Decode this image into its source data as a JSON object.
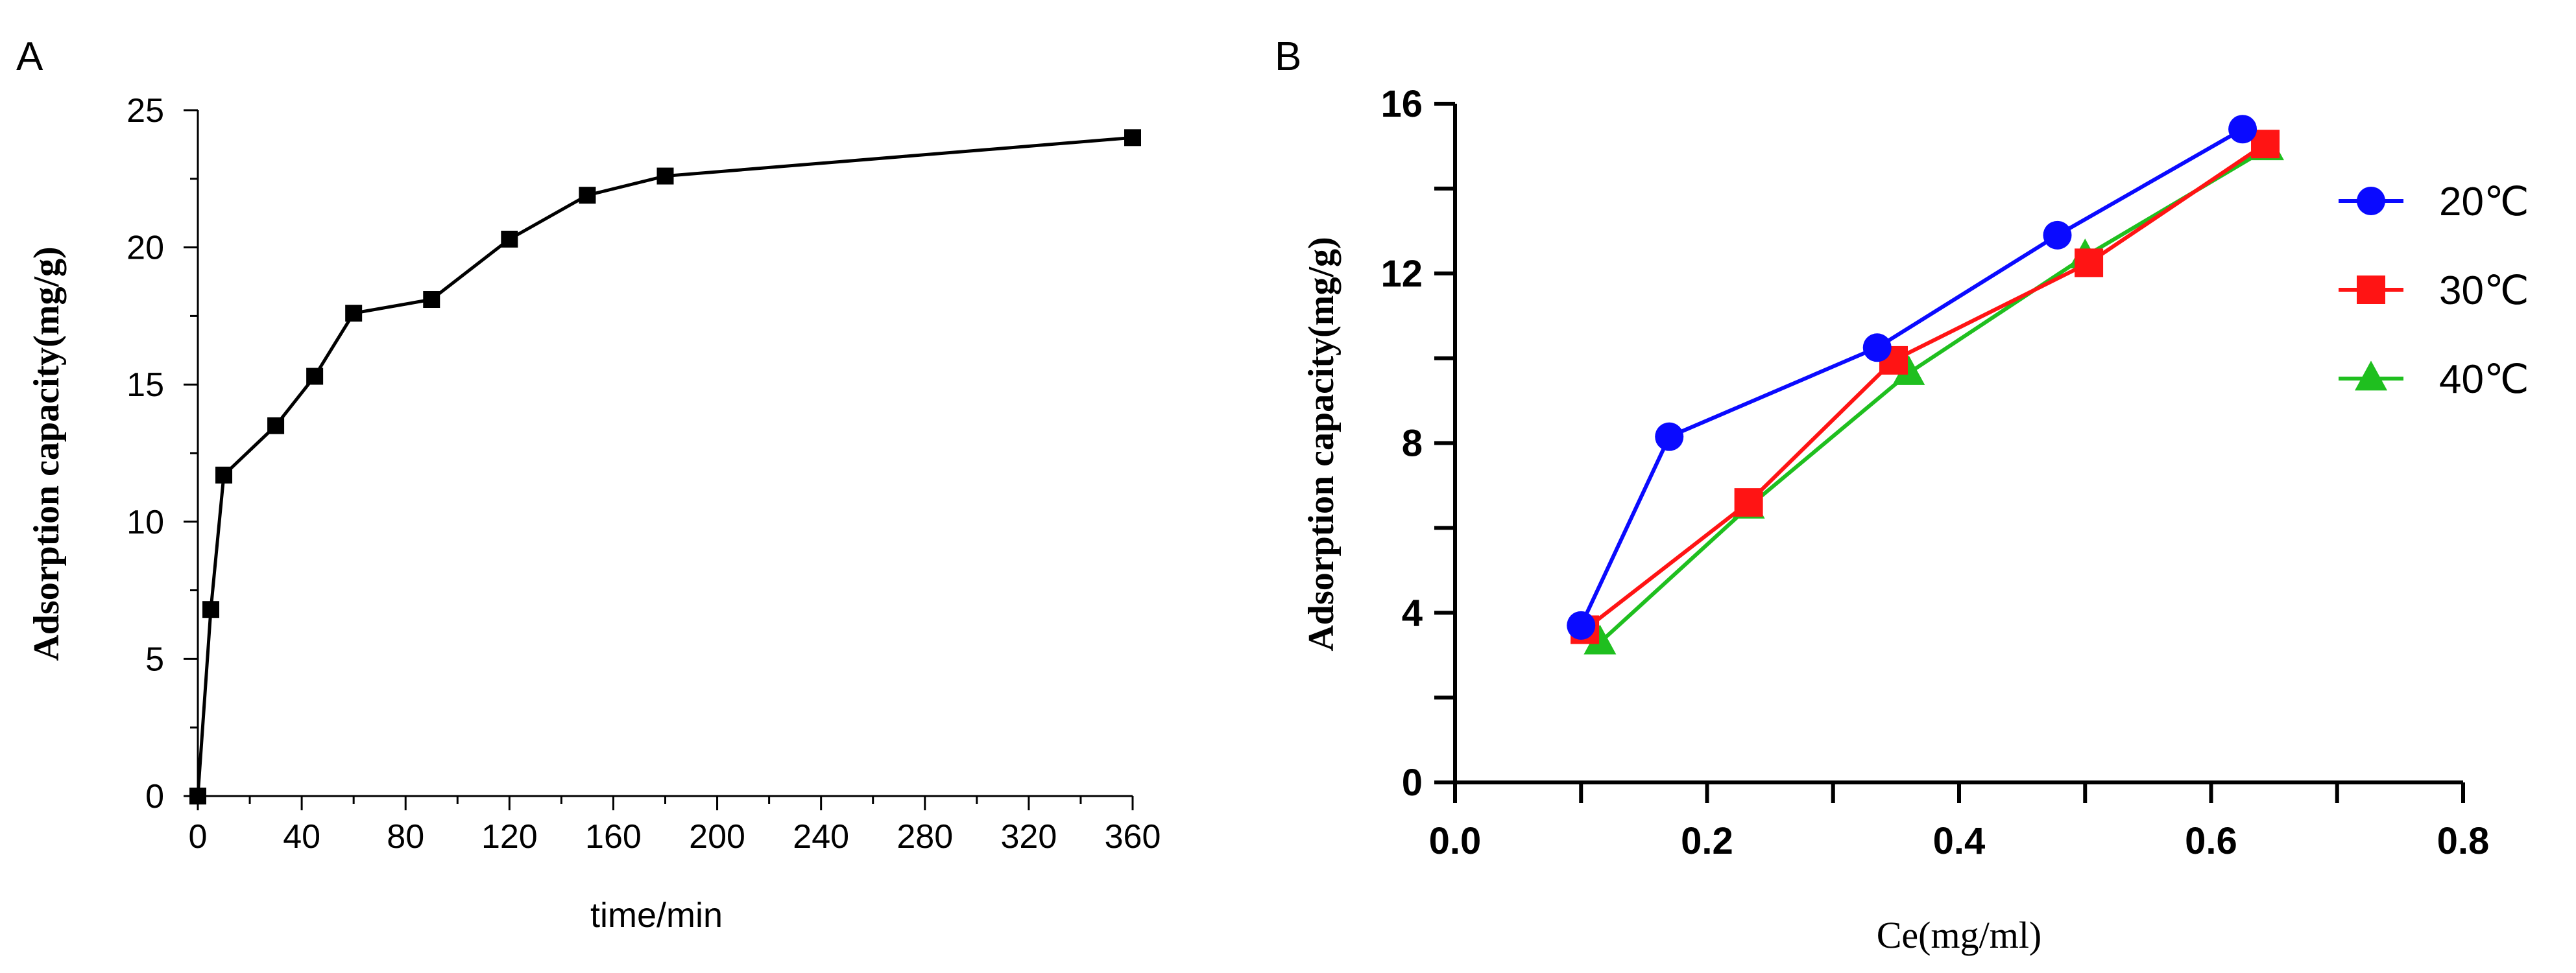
{
  "chart_data": [
    {
      "panel_label": "A",
      "type": "line",
      "title": "",
      "xlabel": "time/min",
      "ylabel": "Adsorption capacity(mg/g)",
      "xlim": [
        0,
        360
      ],
      "ylim": [
        0,
        25
      ],
      "xticks": [
        0,
        40,
        80,
        120,
        160,
        200,
        240,
        280,
        320,
        360
      ],
      "xtick_labels": [
        "0",
        "40",
        "80",
        "120",
        "160",
        "200",
        "240",
        "280",
        "320",
        "360"
      ],
      "yticks": [
        0,
        5,
        10,
        15,
        20,
        25
      ],
      "ytick_labels": [
        "0",
        "5",
        "10",
        "15",
        "20",
        "25"
      ],
      "grid": false,
      "series": [
        {
          "name": "Adsorption capacity",
          "color": "#000000",
          "marker": "square",
          "x": [
            0,
            5,
            10,
            30,
            45,
            60,
            90,
            120,
            150,
            180,
            360
          ],
          "y": [
            0,
            6.8,
            11.7,
            13.5,
            15.3,
            17.6,
            18.1,
            20.3,
            21.9,
            22.6,
            24.0
          ]
        }
      ]
    },
    {
      "panel_label": "B",
      "type": "line",
      "title": "",
      "xlabel": "Ce(mg/ml)",
      "ylabel": "Adsorption capacity(mg/g)",
      "xlim": [
        0,
        0.8
      ],
      "ylim": [
        0,
        16
      ],
      "xticks": [
        0.0,
        0.2,
        0.4,
        0.6,
        0.8
      ],
      "xtick_labels": [
        "0.0",
        "0.2",
        "0.4",
        "0.6",
        "0.8"
      ],
      "yticks": [
        0,
        4,
        8,
        12,
        16
      ],
      "ytick_labels": [
        "0",
        "4",
        "8",
        "12",
        "16"
      ],
      "grid": false,
      "legend_position": "top-right",
      "series": [
        {
          "name": "20℃",
          "color": "#0a0aff",
          "marker": "circle",
          "x": [
            0.1,
            0.17,
            0.335,
            0.478,
            0.625
          ],
          "y": [
            3.7,
            8.15,
            10.25,
            12.9,
            15.4
          ]
        },
        {
          "name": "30℃",
          "color": "#ff1414",
          "marker": "square",
          "x": [
            0.103,
            0.233,
            0.348,
            0.503,
            0.643
          ],
          "y": [
            3.6,
            6.6,
            9.95,
            12.25,
            15.05
          ]
        },
        {
          "name": "40℃",
          "color": "#1fbf1f",
          "marker": "triangle",
          "x": [
            0.115,
            0.233,
            0.36,
            0.5,
            0.645
          ],
          "y": [
            3.3,
            6.5,
            9.65,
            12.4,
            14.95
          ]
        }
      ]
    }
  ]
}
